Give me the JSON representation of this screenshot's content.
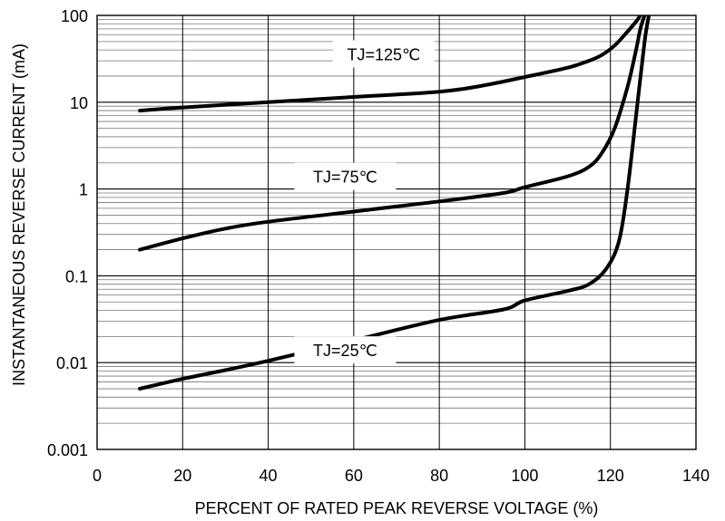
{
  "chart_data": {
    "type": "line",
    "xlabel": "PERCENT OF RATED PEAK REVERSE VOLTAGE (%)",
    "ylabel": "INSTANTANEOUS REVERSE CURRENT (mA)",
    "xlim": [
      0,
      140
    ],
    "ylim": [
      0.001,
      100
    ],
    "yscale": "log",
    "grid": true,
    "x_ticks": [
      "0",
      "20",
      "40",
      "60",
      "80",
      "100",
      "120",
      "140"
    ],
    "y_ticks": [
      "0.001",
      "0.01",
      "0.1",
      "1",
      "10",
      "100"
    ],
    "series": [
      {
        "name": "TJ=125℃",
        "points": [
          [
            10,
            8
          ],
          [
            20,
            8.7
          ],
          [
            40,
            10
          ],
          [
            60,
            11.5
          ],
          [
            80,
            13.2
          ],
          [
            90,
            15.5
          ],
          [
            100,
            19.5
          ],
          [
            110,
            25
          ],
          [
            115,
            30
          ],
          [
            118,
            35
          ],
          [
            121,
            45
          ],
          [
            124,
            65
          ],
          [
            126,
            85
          ],
          [
            127,
            100
          ]
        ]
      },
      {
        "name": "TJ=75℃",
        "points": [
          [
            10,
            0.2
          ],
          [
            20,
            0.27
          ],
          [
            30,
            0.35
          ],
          [
            40,
            0.42
          ],
          [
            60,
            0.55
          ],
          [
            80,
            0.72
          ],
          [
            95,
            0.9
          ],
          [
            100,
            1.05
          ],
          [
            110,
            1.4
          ],
          [
            115,
            1.8
          ],
          [
            118,
            2.6
          ],
          [
            121,
            5
          ],
          [
            124,
            15
          ],
          [
            126,
            40
          ],
          [
            127,
            70
          ],
          [
            128,
            100
          ]
        ]
      },
      {
        "name": "TJ=25℃",
        "points": [
          [
            10,
            0.005
          ],
          [
            20,
            0.0065
          ],
          [
            30,
            0.0082
          ],
          [
            40,
            0.0105
          ],
          [
            60,
            0.018
          ],
          [
            80,
            0.031
          ],
          [
            95,
            0.041
          ],
          [
            100,
            0.052
          ],
          [
            110,
            0.067
          ],
          [
            115,
            0.08
          ],
          [
            119,
            0.12
          ],
          [
            122,
            0.25
          ],
          [
            124,
            1
          ],
          [
            126,
            7
          ],
          [
            128,
            50
          ],
          [
            129,
            100
          ]
        ]
      }
    ]
  }
}
